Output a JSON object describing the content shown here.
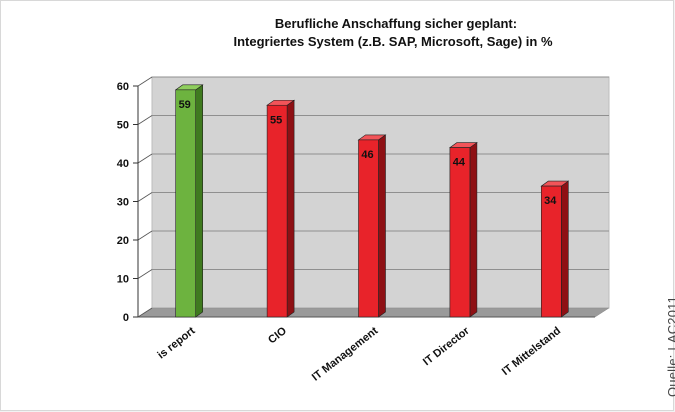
{
  "source_note": "Quelle: LAC2011",
  "chart_data": {
    "type": "bar",
    "title": "Berufliche Anschaffung sicher geplant:",
    "subtitle": "Integriertes System (z.B. SAP, Microsoft, Sage) in %",
    "categories": [
      "is report",
      "CIO",
      "IT Management",
      "IT Director",
      "IT Mittelstand"
    ],
    "values": [
      59,
      55,
      46,
      44,
      34
    ],
    "bar_colors": [
      "#6db33f",
      "#e8232a",
      "#e8232a",
      "#e8232a",
      "#e8232a"
    ],
    "ylim": [
      0,
      60
    ],
    "yticks": [
      0,
      10,
      20,
      30,
      40,
      50,
      60
    ],
    "grid": true,
    "legend": "none"
  }
}
